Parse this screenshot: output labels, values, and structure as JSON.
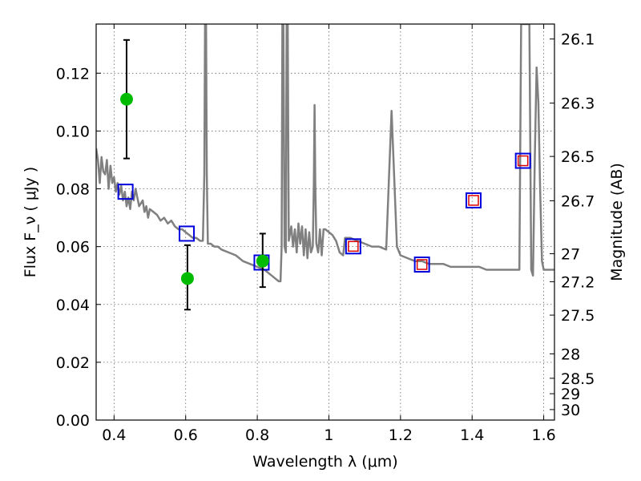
{
  "chart_data": {
    "type": "scatter",
    "xlabel": "Wavelength  λ (μm)",
    "ylabel": "Flux  F_ν  ( μJy )",
    "y2label": "Magnitude (AB)",
    "xlim": [
      0.35,
      1.63
    ],
    "ylim": [
      0.0,
      0.137
    ],
    "grid": true,
    "x_ticks": [
      {
        "value": 0.4,
        "label": "0.4"
      },
      {
        "value": 0.6,
        "label": "0.6"
      },
      {
        "value": 0.8,
        "label": "0.8"
      },
      {
        "value": 1.0,
        "label": "1"
      },
      {
        "value": 1.2,
        "label": "1.2"
      },
      {
        "value": 1.4,
        "label": "1.4"
      },
      {
        "value": 1.6,
        "label": "1.6"
      }
    ],
    "y_ticks": [
      {
        "value": 0.0,
        "label": "0.00"
      },
      {
        "value": 0.02,
        "label": "0.02"
      },
      {
        "value": 0.04,
        "label": "0.04"
      },
      {
        "value": 0.06,
        "label": "0.06"
      },
      {
        "value": 0.08,
        "label": "0.08"
      },
      {
        "value": 0.1,
        "label": "0.10"
      },
      {
        "value": 0.12,
        "label": "0.12"
      }
    ],
    "y2_ticks": [
      {
        "mag": 26.1,
        "label": "26.1"
      },
      {
        "mag": 26.3,
        "label": "26.3"
      },
      {
        "mag": 26.5,
        "label": "26.5"
      },
      {
        "mag": 26.7,
        "label": "26.7"
      },
      {
        "mag": 27.0,
        "label": "27"
      },
      {
        "mag": 27.2,
        "label": "27.2"
      },
      {
        "mag": 27.5,
        "label": "27.5"
      },
      {
        "mag": 28.0,
        "label": "28"
      },
      {
        "mag": 28.5,
        "label": "28.5"
      },
      {
        "mag": 29.0,
        "label": "29"
      },
      {
        "mag": 30.0,
        "label": "30"
      }
    ],
    "colors": {
      "model": "#808080",
      "observed": "#00bb00",
      "errorbar": "#000000",
      "box_outer": "#0000dd",
      "box_inner": "#dd0000"
    },
    "model_spectrum": [
      [
        0.35,
        0.094
      ],
      [
        0.355,
        0.09
      ],
      [
        0.36,
        0.082
      ],
      [
        0.365,
        0.091
      ],
      [
        0.37,
        0.086
      ],
      [
        0.375,
        0.085
      ],
      [
        0.38,
        0.09
      ],
      [
        0.385,
        0.08
      ],
      [
        0.39,
        0.088
      ],
      [
        0.395,
        0.082
      ],
      [
        0.4,
        0.084
      ],
      [
        0.405,
        0.079
      ],
      [
        0.41,
        0.082
      ],
      [
        0.415,
        0.078
      ],
      [
        0.42,
        0.081
      ],
      [
        0.425,
        0.076
      ],
      [
        0.43,
        0.079
      ],
      [
        0.435,
        0.074
      ],
      [
        0.44,
        0.077
      ],
      [
        0.445,
        0.073
      ],
      [
        0.45,
        0.079
      ],
      [
        0.455,
        0.076
      ],
      [
        0.46,
        0.08
      ],
      [
        0.465,
        0.077
      ],
      [
        0.47,
        0.074
      ],
      [
        0.48,
        0.076
      ],
      [
        0.485,
        0.072
      ],
      [
        0.49,
        0.074
      ],
      [
        0.495,
        0.07
      ],
      [
        0.5,
        0.073
      ],
      [
        0.51,
        0.072
      ],
      [
        0.52,
        0.071
      ],
      [
        0.53,
        0.069
      ],
      [
        0.54,
        0.07
      ],
      [
        0.55,
        0.068
      ],
      [
        0.56,
        0.069
      ],
      [
        0.57,
        0.067
      ],
      [
        0.58,
        0.066
      ],
      [
        0.59,
        0.066
      ],
      [
        0.6,
        0.065
      ],
      [
        0.61,
        0.064
      ],
      [
        0.62,
        0.063
      ],
      [
        0.63,
        0.063
      ],
      [
        0.64,
        0.062
      ],
      [
        0.648,
        0.062
      ],
      [
        0.652,
        0.085
      ],
      [
        0.654,
        0.137
      ],
      [
        0.657,
        0.137
      ],
      [
        0.659,
        0.085
      ],
      [
        0.662,
        0.061
      ],
      [
        0.67,
        0.061
      ],
      [
        0.68,
        0.06
      ],
      [
        0.69,
        0.06
      ],
      [
        0.7,
        0.059
      ],
      [
        0.72,
        0.058
      ],
      [
        0.74,
        0.057
      ],
      [
        0.76,
        0.055
      ],
      [
        0.78,
        0.054
      ],
      [
        0.8,
        0.053
      ],
      [
        0.82,
        0.052
      ],
      [
        0.84,
        0.05
      ],
      [
        0.85,
        0.049
      ],
      [
        0.86,
        0.048
      ],
      [
        0.865,
        0.048
      ],
      [
        0.868,
        0.06
      ],
      [
        0.87,
        0.137
      ],
      [
        0.873,
        0.137
      ],
      [
        0.876,
        0.06
      ],
      [
        0.88,
        0.058
      ],
      [
        0.882,
        0.137
      ],
      [
        0.885,
        0.137
      ],
      [
        0.888,
        0.062
      ],
      [
        0.895,
        0.067
      ],
      [
        0.9,
        0.06
      ],
      [
        0.905,
        0.066
      ],
      [
        0.91,
        0.058
      ],
      [
        0.915,
        0.068
      ],
      [
        0.92,
        0.061
      ],
      [
        0.925,
        0.067
      ],
      [
        0.93,
        0.057
      ],
      [
        0.935,
        0.066
      ],
      [
        0.94,
        0.056
      ],
      [
        0.945,
        0.065
      ],
      [
        0.95,
        0.058
      ],
      [
        0.955,
        0.06
      ],
      [
        0.958,
        0.082
      ],
      [
        0.96,
        0.109
      ],
      [
        0.962,
        0.082
      ],
      [
        0.965,
        0.061
      ],
      [
        0.97,
        0.058
      ],
      [
        0.975,
        0.066
      ],
      [
        0.98,
        0.057
      ],
      [
        0.985,
        0.066
      ],
      [
        0.99,
        0.066
      ],
      [
        1.0,
        0.065
      ],
      [
        1.01,
        0.064
      ],
      [
        1.02,
        0.062
      ],
      [
        1.03,
        0.058
      ],
      [
        1.04,
        0.057
      ],
      [
        1.045,
        0.063
      ],
      [
        1.05,
        0.063
      ],
      [
        1.06,
        0.063
      ],
      [
        1.08,
        0.062
      ],
      [
        1.1,
        0.061
      ],
      [
        1.12,
        0.06
      ],
      [
        1.14,
        0.06
      ],
      [
        1.16,
        0.059
      ],
      [
        1.175,
        0.107
      ],
      [
        1.19,
        0.06
      ],
      [
        1.2,
        0.057
      ],
      [
        1.22,
        0.056
      ],
      [
        1.24,
        0.055
      ],
      [
        1.26,
        0.055
      ],
      [
        1.28,
        0.054
      ],
      [
        1.3,
        0.054
      ],
      [
        1.32,
        0.054
      ],
      [
        1.34,
        0.053
      ],
      [
        1.36,
        0.053
      ],
      [
        1.38,
        0.053
      ],
      [
        1.4,
        0.053
      ],
      [
        1.42,
        0.053
      ],
      [
        1.44,
        0.052
      ],
      [
        1.46,
        0.052
      ],
      [
        1.48,
        0.052
      ],
      [
        1.5,
        0.052
      ],
      [
        1.52,
        0.052
      ],
      [
        1.532,
        0.052
      ],
      [
        1.537,
        0.137
      ],
      [
        1.55,
        0.137
      ],
      [
        1.56,
        0.137
      ],
      [
        1.565,
        0.052
      ],
      [
        1.57,
        0.05
      ],
      [
        1.575,
        0.09
      ],
      [
        1.58,
        0.122
      ],
      [
        1.585,
        0.11
      ],
      [
        1.59,
        0.08
      ],
      [
        1.595,
        0.055
      ],
      [
        1.6,
        0.052
      ],
      [
        1.63,
        0.052
      ]
    ],
    "observed_points": [
      {
        "x": 0.435,
        "y": 0.111,
        "yerr_low": 0.0905,
        "yerr_high": 0.1315
      },
      {
        "x": 0.605,
        "y": 0.049,
        "yerr_low": 0.0382,
        "yerr_high": 0.0605
      },
      {
        "x": 0.815,
        "y": 0.055,
        "yerr_low": 0.046,
        "yerr_high": 0.0645
      }
    ],
    "box_points": [
      {
        "x": 0.432,
        "y": 0.079,
        "inner": false
      },
      {
        "x": 0.603,
        "y": 0.0645,
        "inner": false
      },
      {
        "x": 0.812,
        "y": 0.0545,
        "inner": false
      },
      {
        "x": 1.068,
        "y": 0.0601,
        "inner": true
      },
      {
        "x": 1.26,
        "y": 0.0538,
        "inner": true
      },
      {
        "x": 1.404,
        "y": 0.076,
        "inner": true
      },
      {
        "x": 1.542,
        "y": 0.0897,
        "inner": true
      }
    ]
  }
}
